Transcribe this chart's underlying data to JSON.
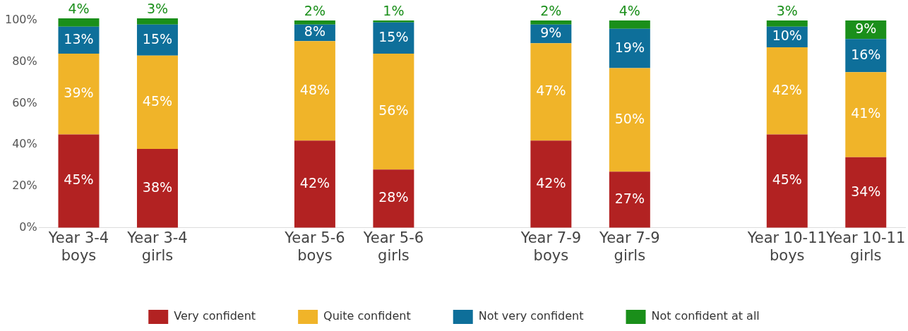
{
  "chart_data": {
    "type": "bar",
    "stacked": true,
    "legend": "bottom",
    "grid": false,
    "categories": [
      "Year 3-4 boys",
      "Year 3-4 girls",
      null,
      "Year 5-6 boys",
      "Year 5-6 girls",
      null,
      "Year 7-9 boys",
      "Year 7-9 girls",
      null,
      "Year 10-11 boys",
      "Year 10-11 girls"
    ],
    "ylim": [
      0,
      101
    ],
    "yticks": [
      {
        "value": 0,
        "label": "0%"
      },
      {
        "value": 20,
        "label": "20%"
      },
      {
        "value": 40,
        "label": "40%"
      },
      {
        "value": 60,
        "label": "60%"
      },
      {
        "value": 80,
        "label": "80%"
      },
      {
        "value": 100,
        "label": "100%"
      }
    ],
    "series": [
      {
        "name": "Very confident",
        "color": "#b22222",
        "values": [
          45,
          38,
          null,
          42,
          28,
          null,
          42,
          27,
          null,
          45,
          34
        ],
        "value_labels": [
          "45%",
          "38%",
          null,
          "42%",
          "28%",
          null,
          "42%",
          "27%",
          null,
          "45%",
          "34%"
        ]
      },
      {
        "name": "Quite confident",
        "color": "#f0b429",
        "values": [
          39,
          45,
          null,
          48,
          56,
          null,
          47,
          50,
          null,
          42,
          41
        ],
        "value_labels": [
          "39%",
          "45%",
          null,
          "48%",
          "56%",
          null,
          "47%",
          "50%",
          null,
          "42%",
          "41%"
        ]
      },
      {
        "name": "Not very confident",
        "color": "#0e6f9a",
        "values": [
          13,
          15,
          null,
          8,
          15,
          null,
          9,
          19,
          null,
          10,
          16
        ],
        "value_labels": [
          "13%",
          "15%",
          null,
          "8%",
          "15%",
          null,
          "9%",
          "19%",
          null,
          "10%",
          "16%"
        ]
      },
      {
        "name": "Not confident at all",
        "color": "#1a8f1a",
        "values": [
          4,
          3,
          null,
          2,
          1,
          null,
          2,
          4,
          null,
          3,
          9
        ],
        "value_labels": [
          "4%",
          "3%",
          null,
          "2%",
          "1%",
          null,
          "2%",
          "4%",
          null,
          "3%",
          "9%"
        ]
      }
    ]
  }
}
